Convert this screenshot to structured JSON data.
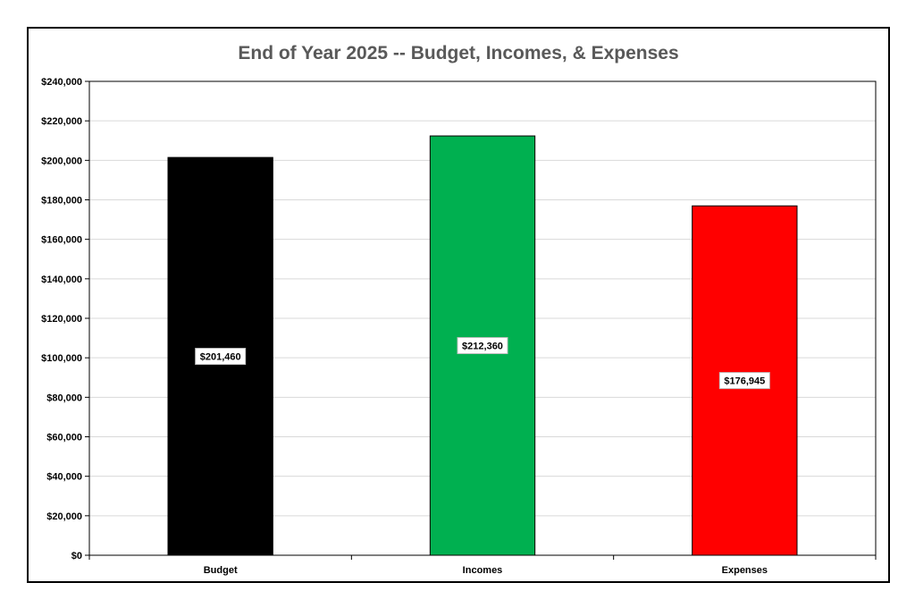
{
  "chart_data": {
    "type": "bar",
    "title": "End of Year 2025 -- Budget, Incomes, & Expenses",
    "categories": [
      "Budget",
      "Incomes",
      "Expenses"
    ],
    "values": [
      201460,
      212360,
      176945
    ],
    "data_labels": [
      "$201,460",
      "$212,360",
      "$176,945"
    ],
    "colors": [
      "#000000",
      "#00b050",
      "#ff0000"
    ],
    "ylim": [
      0,
      240000
    ],
    "yticks": [
      0,
      20000,
      40000,
      60000,
      80000,
      100000,
      120000,
      140000,
      160000,
      180000,
      200000,
      220000,
      240000
    ],
    "ytick_labels": [
      "$0",
      "$20,000",
      "$40,000",
      "$60,000",
      "$80,000",
      "$100,000",
      "$120,000",
      "$140,000",
      "$160,000",
      "$180,000",
      "$200,000",
      "$220,000",
      "$240,000"
    ],
    "grid": true,
    "xlabel": "",
    "ylabel": ""
  }
}
